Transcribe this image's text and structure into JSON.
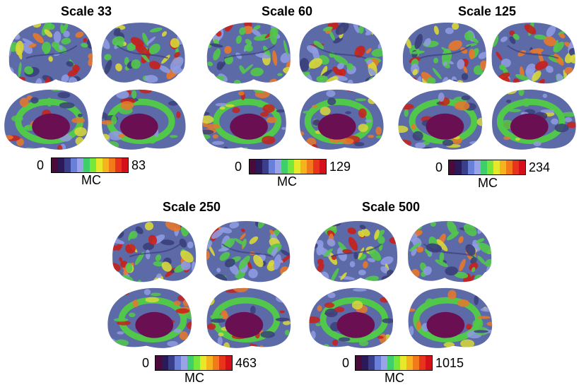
{
  "colormap": [
    "#4a0a3a",
    "#2a1a5a",
    "#3a3f8c",
    "#6a7fd8",
    "#9aa3e8",
    "#3ecf6a",
    "#77e83a",
    "#e8e82a",
    "#f5b41e",
    "#f27a1a",
    "#e8341a",
    "#d4101a"
  ],
  "brain_colors": {
    "base": "#5c6aa8",
    "light": "#8f9be0",
    "green": "#52c84a",
    "yellow": "#d8d83a",
    "orange": "#e8782a",
    "red": "#c8201a",
    "core": "#6a0f52",
    "dark": "#3a3f7a"
  },
  "panels": [
    {
      "title": "Scale 33",
      "min": "0",
      "max": "83",
      "label": "MC"
    },
    {
      "title": "Scale 60",
      "min": "0",
      "max": "129",
      "label": "MC"
    },
    {
      "title": "Scale 125",
      "min": "0",
      "max": "234",
      "label": "MC"
    },
    {
      "title": "Scale 250",
      "min": "0",
      "max": "463",
      "label": "MC"
    },
    {
      "title": "Scale 500",
      "min": "0",
      "max": "1015",
      "label": "MC"
    }
  ]
}
